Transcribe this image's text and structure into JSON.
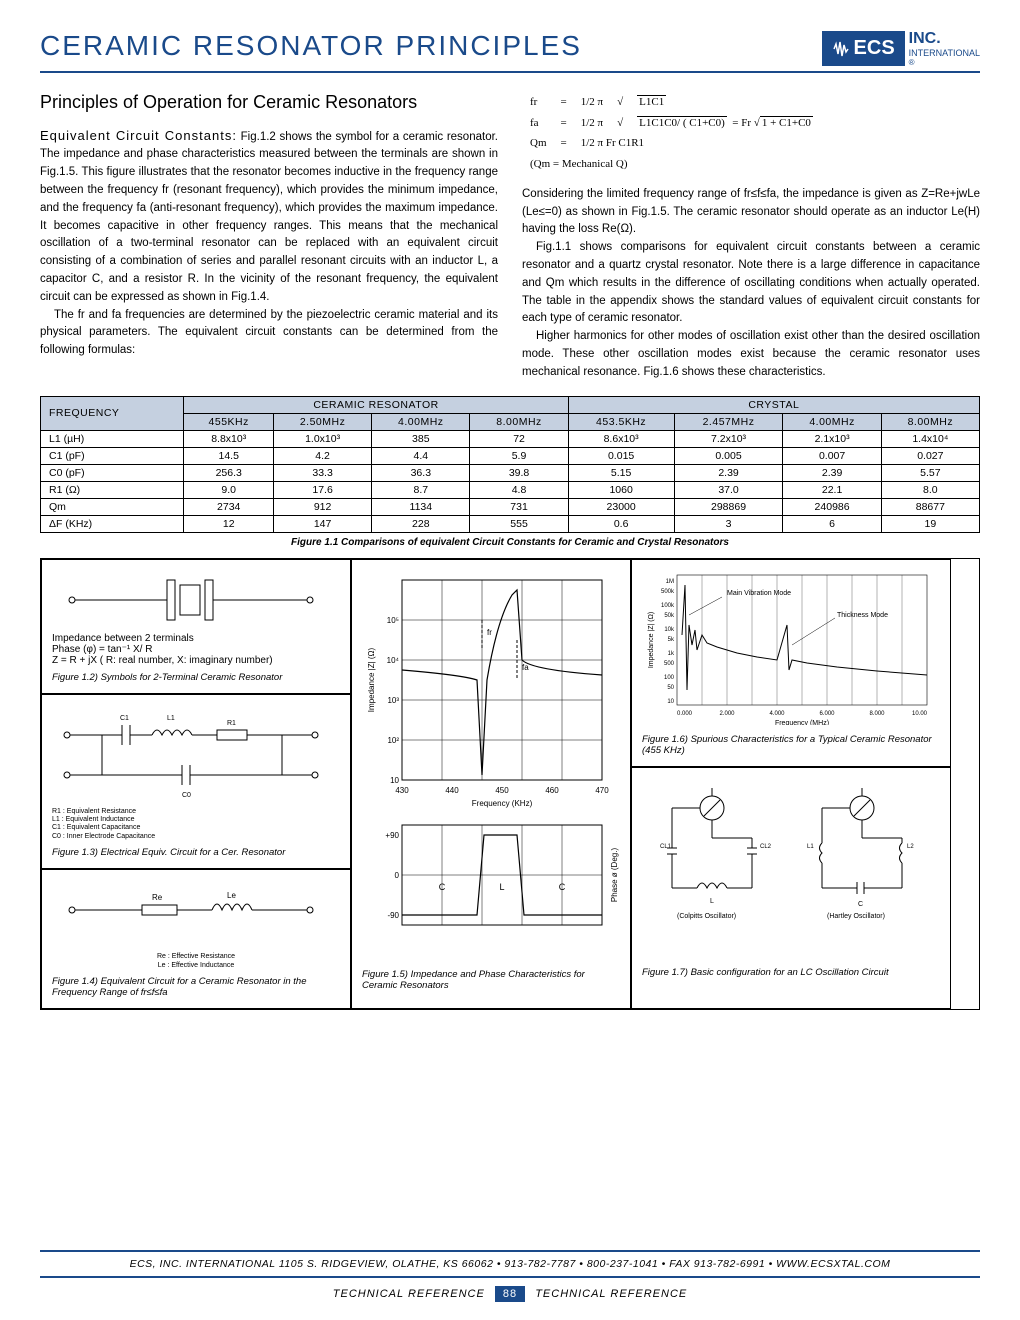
{
  "header": {
    "title": "CERAMIC RESONATOR PRINCIPLES",
    "logo_brand": "ECS",
    "logo_inc": "INC.",
    "logo_sub": "INTERNATIONAL"
  },
  "section": {
    "heading": "Principles of Operation for Ceramic Resonators",
    "para1_lead": "Equivalent Circuit Constants:",
    "para1": " Fig.1.2 shows the symbol for a ceramic resonator. The impedance and phase characteristics measured between the terminals are shown in Fig.1.5. This figure illustrates that the resonator becomes inductive in the frequency range between the frequency fr (resonant frequency), which provides the minimum impedance, and the frequency fa (anti-resonant frequency), which provides the maximum impedance. It becomes capacitive in other frequency ranges. This means that the mechanical oscillation of a two-terminal resonator can be replaced with an equivalent circuit consisting of a combination of series and parallel resonant circuits with an inductor L, a capacitor C, and a resistor R. In the vicinity of the resonant frequency, the equivalent circuit can be expressed as shown in Fig.1.4.",
    "para2": "The fr and fa frequencies are determined by the piezoelectric ceramic material and its physical parameters. The equivalent circuit constants can be determined from the following formulas:",
    "para3": "Considering the limited frequency range of fr≤f≤fa, the impedance is given as Z=Re+jwLe (Le≤=0) as shown in Fig.1.5. The ceramic resonator should operate as an inductor Le(H) having the loss Re(Ω).",
    "para4": "Fig.1.1 shows comparisons for equivalent circuit constants between a ceramic resonator and a quartz crystal resonator. Note there is a large difference in capacitance and Qm which results in the difference of oscillating conditions when actually operated. The table in the appendix shows the standard values of equivalent circuit constants for each type of ceramic resonator.",
    "para5": "Higher harmonics for other modes of oscillation exist other than the desired oscillation mode. These other oscillation modes exist because the ceramic resonator uses mechanical resonance. Fig.1.6 shows these characteristics."
  },
  "formulas": {
    "f_r": "fr",
    "f_a": "fa",
    "q_m": "Qm",
    "qmech": "(Qm  =  Mechanical Q)",
    "eq": "=",
    "half2pi": "1/2 π",
    "l1c1": "L1C1",
    "l1c1c0": "L1C1C0/ ( C1+C0)",
    "fr_tail": "= Fr",
    "one_plus": "1 + C1+C0",
    "frc1r1": "1/2 π Fr C1R1"
  },
  "table": {
    "header_freq": "FREQUENCY",
    "header_ceramic": "CERAMIC RESONATOR",
    "header_crystal": "CRYSTAL",
    "freqs": [
      "455KHz",
      "2.50MHz",
      "4.00MHz",
      "8.00MHz",
      "453.5KHz",
      "2.457MHz",
      "4.00MHz",
      "8.00MHz"
    ],
    "rows": [
      {
        "label": "L1 (µH)",
        "vals": [
          "8.8x10³",
          "1.0x10³",
          "385",
          "72",
          "8.6x10³",
          "7.2x10³",
          "2.1x10³",
          "1.4x10⁴"
        ]
      },
      {
        "label": "C1 (pF)",
        "vals": [
          "14.5",
          "4.2",
          "4.4",
          "5.9",
          "0.015",
          "0.005",
          "0.007",
          "0.027"
        ]
      },
      {
        "label": "C0 (pF)",
        "vals": [
          "256.3",
          "33.3",
          "36.3",
          "39.8",
          "5.15",
          "2.39",
          "2.39",
          "5.57"
        ]
      },
      {
        "label": "R1 (Ω)",
        "vals": [
          "9.0",
          "17.6",
          "8.7",
          "4.8",
          "1060",
          "37.0",
          "22.1",
          "8.0"
        ]
      },
      {
        "label": "Qm",
        "vals": [
          "2734",
          "912",
          "1134",
          "731",
          "23000",
          "298869",
          "240986",
          "88677"
        ]
      },
      {
        "label": "ΔF (KHz)",
        "vals": [
          "12",
          "147",
          "228",
          "555",
          "0.6",
          "3",
          "6",
          "19"
        ]
      }
    ],
    "caption": "Figure 1.1 Comparisons of equivalent Circuit Constants for Ceramic and Crystal Resonators"
  },
  "figs": {
    "f12_text1": "Impedance between 2 terminals",
    "f12_text2": "Phase (φ) = tan⁻¹ X/ R",
    "f12_text3": "Z = R + jX ( R: real number, X: imaginary number)",
    "f12_cap": "Figure 1.2) Symbols for 2-Terminal Ceramic Resonator",
    "f13_r1": "R1 : Equivalent Resistance",
    "f13_l1": "L1 : Equivalent Inductance",
    "f13_c1": "C1 : Equivalent Capacitance",
    "f13_c0": "C0 : Inner Electrode Capacitance",
    "f13_cap": "Figure 1.3) Electrical Equiv. Circuit for a Cer. Resonator",
    "f14_re": "Re : Effective Resistance",
    "f14_le": "Le : Effective Inductance",
    "f14_cap": "Figure 1.4) Equivalent Circuit for a Ceramic Resonator in the Frequency Range of fr≤f≤fa",
    "f15_cap": "Figure 1.5) Impedance and Phase Characteristics for Ceramic Resonators",
    "f15_ylabel": "Impedance |Z| (Ω)",
    "f15_ylabel2": "Phase ø (Deg.)",
    "f15_xlabel": "Frequency (KHz)",
    "f15_xticks": [
      "430",
      "440",
      "450",
      "460",
      "470"
    ],
    "f15_yticks": [
      "10",
      "10²",
      "10³",
      "10⁴",
      "10⁵"
    ],
    "f15_pticks": [
      "-90",
      "0",
      "+90"
    ],
    "f15_clc": [
      "C",
      "L",
      "C"
    ],
    "f15_fr": "fr",
    "f15_fa": "fa",
    "f16_cap": "Figure 1.6) Spurious Characteristics for a Typical Ceramic Resonator (455 KHz)",
    "f16_main": "Main Vibration Mode",
    "f16_thick": "Thickness Mode",
    "f16_xlabel": "Frequency (MHz)",
    "f16_ylabel": "Impedance |Z| (Ω)",
    "f17_cap": "Figure 1.7) Basic configuration for an LC Oscillation Circuit",
    "f17_colpitts": "(Colpitts Oscillator)",
    "f17_hartley": "(Hartley Oscillator)"
  },
  "footer": {
    "line": "ECS, INC. INTERNATIONAL 1105 S. RIDGEVIEW, OLATHE, KS 66062 • 913-782-7787 • 800-237-1041 • FAX 913-782-6991 • WWW.ECSXTAL.COM",
    "tech_ref": "TECHNICAL REFERENCE",
    "page": "88"
  },
  "colors": {
    "brand": "#1a4a8a",
    "table_header": "#c5d0e0"
  }
}
